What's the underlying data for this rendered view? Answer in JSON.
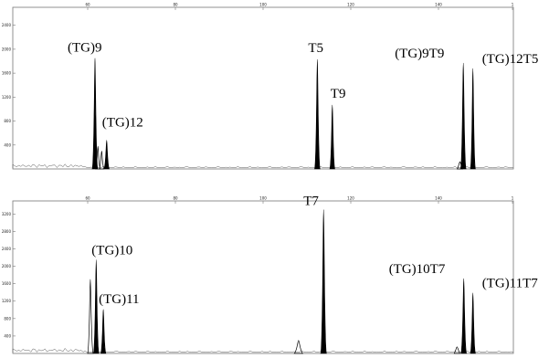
{
  "chart_data": [
    {
      "type": "area",
      "x_ticks": [
        "60",
        "80",
        "100",
        "120",
        "140",
        "1"
      ],
      "y_ticks": [
        "400",
        "800",
        "1200",
        "1600",
        "2000",
        "2400"
      ],
      "ylim": [
        0,
        2700
      ],
      "xlim": [
        40,
        160
      ],
      "grid": false,
      "peaks": [
        {
          "label": "(TG)9",
          "x": 59.7,
          "height": 1850,
          "width": 0.3,
          "shaded": true
        },
        {
          "label": "(TG)12",
          "x": 62.5,
          "height": 480,
          "width": 0.28,
          "shaded": true
        },
        {
          "label": "T5",
          "x": 113.0,
          "height": 1830,
          "width": 0.3,
          "shaded": true
        },
        {
          "label": "T9",
          "x": 116.6,
          "height": 1070,
          "width": 0.28,
          "shaded": true
        },
        {
          "label": "(TG)9T9",
          "x": 148.0,
          "height": 1770,
          "width": 0.3,
          "shaded": true
        },
        {
          "label": "(TG)12T5",
          "x": 150.3,
          "height": 1680,
          "width": 0.28,
          "shaded": true
        },
        {
          "label": "",
          "x": 60.4,
          "height": 380,
          "width": 0.25,
          "shaded": false
        },
        {
          "label": "",
          "x": 61.3,
          "height": 300,
          "width": 0.25,
          "shaded": false
        },
        {
          "label": "",
          "x": 147.2,
          "height": 120,
          "width": 0.3,
          "shaded": false
        }
      ]
    },
    {
      "type": "area",
      "x_ticks": [
        "60",
        "80",
        "100",
        "120",
        "140",
        "1"
      ],
      "y_ticks": [
        "400",
        "800",
        "1200",
        "1600",
        "2000",
        "2400",
        "2800",
        "3200"
      ],
      "ylim": [
        0,
        3500
      ],
      "xlim": [
        40,
        160
      ],
      "grid": false,
      "peaks": [
        {
          "label": "(TG)10",
          "x": 60.0,
          "height": 2150,
          "width": 0.3,
          "shaded": true
        },
        {
          "label": "(TG)11",
          "x": 61.7,
          "height": 1010,
          "width": 0.28,
          "shaded": true
        },
        {
          "label": "T7",
          "x": 114.5,
          "height": 3300,
          "width": 0.32,
          "shaded": true
        },
        {
          "label": "(TG)10T7",
          "x": 148.1,
          "height": 1720,
          "width": 0.3,
          "shaded": true
        },
        {
          "label": "(TG)11T7",
          "x": 150.3,
          "height": 1390,
          "width": 0.28,
          "shaded": true
        },
        {
          "label": "",
          "x": 58.6,
          "height": 1700,
          "width": 0.3,
          "shaded": false
        },
        {
          "label": "",
          "x": 108.5,
          "height": 300,
          "width": 0.45,
          "shaded": false
        },
        {
          "label": "",
          "x": 146.5,
          "height": 150,
          "width": 0.3,
          "shaded": false
        }
      ]
    }
  ]
}
